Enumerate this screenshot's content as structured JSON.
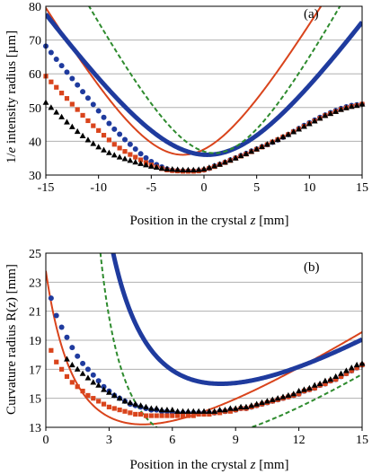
{
  "chart_data": [
    {
      "type": "scatter",
      "panel_label": "(a)",
      "xlabel": "Position in the crystal",
      "xlabel_var": "z",
      "xlabel_unit": "[mm]",
      "ylabel_pre": "1/",
      "ylabel_var": "e",
      "ylabel_post": " intensity radius [µm]",
      "xlim": [
        -15,
        15
      ],
      "ylim": [
        30,
        80
      ],
      "xticks": [
        -15,
        -10,
        -5,
        0,
        5,
        10,
        15
      ],
      "yticks": [
        30,
        40,
        50,
        60,
        70,
        80
      ],
      "grid": "horizontal",
      "lines": [
        {
          "color": "#d9441c",
          "style": "solid",
          "width": 2,
          "w0": 36.0,
          "z0": -2.0,
          "zr": 6.6
        },
        {
          "color": "#1f3b9e",
          "style": "solid",
          "width": 5,
          "w0": 36.0,
          "z0": 0.3,
          "zr": 8.0
        },
        {
          "color": "#2e8b2e",
          "style": "dashed",
          "width": 2,
          "w0": 36.5,
          "z0": 1.0,
          "zr": 6.1
        }
      ],
      "markers": [
        {
          "color": "#1f3b9e",
          "shape": "circle",
          "x": [
            -15,
            -14.5,
            -14,
            -13.5,
            -13,
            -12.5,
            -12,
            -11.5,
            -11,
            -10.5,
            -10,
            -9.5,
            -9,
            -8.5,
            -8,
            -7.5,
            -7,
            -6.5,
            -6,
            -5.5,
            -5,
            -4.5,
            -4,
            -3.5,
            -3,
            -2.5,
            -2,
            -1.5,
            -1,
            -0.5,
            0,
            0.5,
            1,
            1.5,
            2,
            2.5,
            3,
            3.5,
            4,
            4.5,
            5,
            5.5,
            6,
            6.5,
            7,
            7.5,
            8,
            8.5,
            9,
            9.5,
            10,
            10.5,
            11,
            11.5,
            12,
            12.5,
            13,
            13.5,
            14,
            14.5,
            15
          ],
          "y": [
            68.2,
            66.3,
            64.3,
            62.4,
            60.5,
            58.6,
            56.7,
            54.7,
            52.8,
            50.9,
            49.0,
            47.1,
            45.3,
            43.6,
            42.1,
            40.5,
            39.1,
            37.7,
            36.3,
            35.1,
            34.0,
            33.1,
            32.4,
            31.8,
            31.4,
            31.3,
            31.2,
            31.2,
            31.2,
            31.3,
            31.5,
            32.0,
            32.7,
            33.2,
            33.8,
            34.5,
            35.1,
            35.8,
            36.4,
            37.1,
            37.7,
            38.4,
            39.0,
            39.7,
            40.4,
            41.2,
            42.0,
            42.9,
            43.8,
            44.7,
            45.5,
            46.3,
            47.1,
            47.8,
            48.5,
            49.1,
            49.7,
            50.2,
            50.6,
            50.8,
            51.0
          ]
        },
        {
          "color": "#d9441c",
          "shape": "square",
          "x": [
            -15,
            -14.5,
            -14,
            -13.5,
            -13,
            -12.5,
            -12,
            -11.5,
            -11,
            -10.5,
            -10,
            -9.5,
            -9,
            -8.5,
            -8,
            -7.5,
            -7,
            -6.5,
            -6,
            -5.5,
            -5,
            -4.5,
            -4,
            -3.5,
            -3,
            -2.5,
            -2,
            -1.5,
            -1,
            -0.5,
            0,
            0.5,
            1,
            1.5,
            2,
            2.5,
            3,
            3.5,
            4,
            4.5,
            5,
            5.5,
            6,
            6.5,
            7,
            7.5,
            8,
            8.5,
            9,
            9.5,
            10,
            10.5,
            11,
            11.5,
            12,
            12.5,
            13,
            13.5,
            14,
            14.5,
            15
          ],
          "y": [
            59.3,
            57.6,
            56.0,
            54.3,
            52.7,
            51.0,
            49.4,
            47.7,
            46.1,
            44.6,
            43.2,
            41.8,
            40.4,
            39.1,
            38.0,
            37.0,
            36.1,
            35.3,
            34.5,
            33.7,
            33.0,
            32.4,
            31.9,
            31.5,
            31.3,
            31.2,
            31.1,
            31.1,
            31.1,
            31.2,
            31.5,
            32.0,
            32.5,
            33.1,
            33.7,
            34.3,
            35.0,
            35.6,
            36.2,
            36.9,
            37.6,
            38.3,
            39.0,
            39.8,
            40.5,
            41.3,
            42.0,
            42.8,
            43.6,
            44.4,
            45.2,
            46.0,
            46.8,
            47.6,
            48.2,
            48.8,
            49.4,
            49.9,
            50.3,
            50.6,
            51.0
          ]
        },
        {
          "color": "#000000",
          "shape": "triangle",
          "x": [
            -15,
            -14.5,
            -14,
            -13.5,
            -13,
            -12.5,
            -12,
            -11.5,
            -11,
            -10.5,
            -10,
            -9.5,
            -9,
            -8.5,
            -8,
            -7.5,
            -7,
            -6.5,
            -6,
            -5.5,
            -5,
            -4.5,
            -4,
            -3.5,
            -3,
            -2.5,
            -2,
            -1.5,
            -1,
            -0.5,
            0,
            0.5,
            1,
            1.5,
            2,
            2.5,
            3,
            3.5,
            4,
            4.5,
            5,
            5.5,
            6,
            6.5,
            7,
            7.5,
            8,
            8.5,
            9,
            9.5,
            10,
            10.5,
            11,
            11.5,
            12,
            12.5,
            13,
            13.5,
            14,
            14.5,
            15
          ],
          "y": [
            51.5,
            50.0,
            48.6,
            47.2,
            45.7,
            44.3,
            42.9,
            41.6,
            40.4,
            39.3,
            38.3,
            37.4,
            36.6,
            35.9,
            35.3,
            34.8,
            34.3,
            33.8,
            33.4,
            33.0,
            32.6,
            32.3,
            32.0,
            31.8,
            31.7,
            31.6,
            31.5,
            31.5,
            31.5,
            31.6,
            31.8,
            32.2,
            32.7,
            33.2,
            33.8,
            34.4,
            35.0,
            35.7,
            36.3,
            37.0,
            37.7,
            38.4,
            39.1,
            39.8,
            40.5,
            41.3,
            42.0,
            42.8,
            43.6,
            44.4,
            45.2,
            46.0,
            46.8,
            47.6,
            48.2,
            48.8,
            49.4,
            49.9,
            50.3,
            50.6,
            51.0
          ]
        }
      ]
    },
    {
      "type": "scatter",
      "panel_label": "(b)",
      "xlabel": "Position in the crystal",
      "xlabel_var": "z",
      "xlabel_unit": "[mm]",
      "ylabel": "Curvature radius R(z) [mm]",
      "xlim": [
        0,
        15
      ],
      "ylim": [
        13,
        25
      ],
      "xticks": [
        0,
        3,
        6,
        9,
        12,
        15
      ],
      "yticks": [
        13,
        15,
        17,
        19,
        21,
        23,
        25
      ],
      "grid": "horizontal",
      "lines": [
        {
          "color": "#d9441c",
          "style": "solid",
          "width": 2,
          "z0": -2.0,
          "zr": 6.6
        },
        {
          "color": "#1f3b9e",
          "style": "solid",
          "width": 5,
          "z0": 0.3,
          "zr": 8.0
        },
        {
          "color": "#2e8b2e",
          "style": "dashed",
          "width": 2,
          "z0": 1.0,
          "zr": 6.1
        }
      ],
      "markers": [
        {
          "color": "#1f3b9e",
          "shape": "circle",
          "x": [
            0.25,
            0.5,
            0.75,
            1,
            1.25,
            1.5,
            1.75,
            2,
            2.25,
            2.5,
            2.75,
            3,
            3.25,
            3.5,
            3.75,
            4,
            4.25,
            4.5,
            4.75,
            5,
            5.25,
            5.5,
            5.75,
            6,
            6.25,
            6.5,
            6.75,
            7,
            7.25,
            7.5,
            7.75,
            8,
            8.25,
            8.5,
            8.75,
            9,
            9.25,
            9.5,
            9.75,
            10,
            10.25,
            10.5,
            10.75,
            11,
            11.25,
            11.5,
            11.75,
            12,
            12.25,
            12.5,
            12.75,
            13,
            13.25,
            13.5,
            13.75,
            14,
            14.25,
            14.5,
            14.75,
            15
          ],
          "y": [
            21.9,
            20.7,
            19.9,
            19.2,
            18.5,
            17.9,
            17.4,
            17.0,
            16.6,
            16.2,
            15.8,
            15.5,
            15.2,
            15.0,
            14.8,
            14.6,
            14.5,
            14.4,
            14.3,
            14.2,
            14.2,
            14.1,
            14.1,
            14.0,
            14.0,
            14.0,
            14.0,
            14.0,
            14.0,
            14.0,
            14.0,
            14.0,
            14.1,
            14.1,
            14.2,
            14.2,
            14.3,
            14.3,
            14.4,
            14.5,
            14.6,
            14.7,
            14.8,
            14.9,
            15.0,
            15.1,
            15.2,
            15.3,
            15.5,
            15.6,
            15.7,
            15.9,
            16.0,
            16.2,
            16.3,
            16.5,
            16.7,
            16.9,
            17.1,
            17.3
          ]
        },
        {
          "color": "#d9441c",
          "shape": "square",
          "x": [
            0.25,
            0.5,
            0.75,
            1,
            1.25,
            1.5,
            1.75,
            2,
            2.25,
            2.5,
            2.75,
            3,
            3.25,
            3.5,
            3.75,
            4,
            4.25,
            4.5,
            4.75,
            5,
            5.25,
            5.5,
            5.75,
            6,
            6.25,
            6.5,
            6.75,
            7,
            7.25,
            7.5,
            7.75,
            8,
            8.25,
            8.5,
            8.75,
            9,
            9.25,
            9.5,
            9.75,
            10,
            10.25,
            10.5,
            10.75,
            11,
            11.25,
            11.5,
            11.75,
            12,
            12.25,
            12.5,
            12.75,
            13,
            13.25,
            13.5,
            13.75,
            14,
            14.25,
            14.5,
            14.75,
            15
          ],
          "y": [
            18.3,
            17.5,
            17.0,
            16.5,
            16.1,
            15.8,
            15.5,
            15.2,
            15.0,
            14.8,
            14.6,
            14.4,
            14.3,
            14.2,
            14.1,
            14.0,
            13.9,
            13.9,
            13.8,
            13.8,
            13.8,
            13.8,
            13.8,
            13.8,
            13.8,
            13.8,
            13.8,
            13.8,
            13.9,
            13.9,
            13.9,
            14.0,
            14.0,
            14.1,
            14.1,
            14.2,
            14.3,
            14.3,
            14.4,
            14.5,
            14.6,
            14.7,
            14.8,
            14.9,
            15.0,
            15.1,
            15.2,
            15.3,
            15.5,
            15.6,
            15.7,
            15.9,
            16.0,
            16.2,
            16.3,
            16.5,
            16.7,
            16.9,
            17.1,
            17.3
          ]
        },
        {
          "color": "#000000",
          "shape": "triangle",
          "x": [
            1,
            1.25,
            1.5,
            1.75,
            2,
            2.25,
            2.5,
            2.75,
            3,
            3.25,
            3.5,
            3.75,
            4,
            4.25,
            4.5,
            4.75,
            5,
            5.25,
            5.5,
            5.75,
            6,
            6.25,
            6.5,
            6.75,
            7,
            7.25,
            7.5,
            7.75,
            8,
            8.25,
            8.5,
            8.75,
            9,
            9.25,
            9.5,
            9.75,
            10,
            10.25,
            10.5,
            10.75,
            11,
            11.25,
            11.5,
            11.75,
            12,
            12.25,
            12.5,
            12.75,
            13,
            13.25,
            13.5,
            13.75,
            14,
            14.25,
            14.5,
            14.75,
            15
          ],
          "y": [
            17.7,
            17.3,
            17.0,
            16.7,
            16.4,
            16.1,
            15.9,
            15.6,
            15.4,
            15.2,
            15.0,
            14.8,
            14.7,
            14.6,
            14.5,
            14.4,
            14.3,
            14.3,
            14.2,
            14.2,
            14.2,
            14.1,
            14.1,
            14.1,
            14.1,
            14.1,
            14.1,
            14.1,
            14.1,
            14.2,
            14.2,
            14.3,
            14.3,
            14.4,
            14.4,
            14.5,
            14.6,
            14.7,
            14.8,
            14.9,
            15.0,
            15.1,
            15.2,
            15.3,
            15.5,
            15.6,
            15.7,
            15.9,
            16.0,
            16.2,
            16.3,
            16.5,
            16.7,
            16.9,
            17.1,
            17.3,
            17.4
          ]
        }
      ]
    }
  ]
}
